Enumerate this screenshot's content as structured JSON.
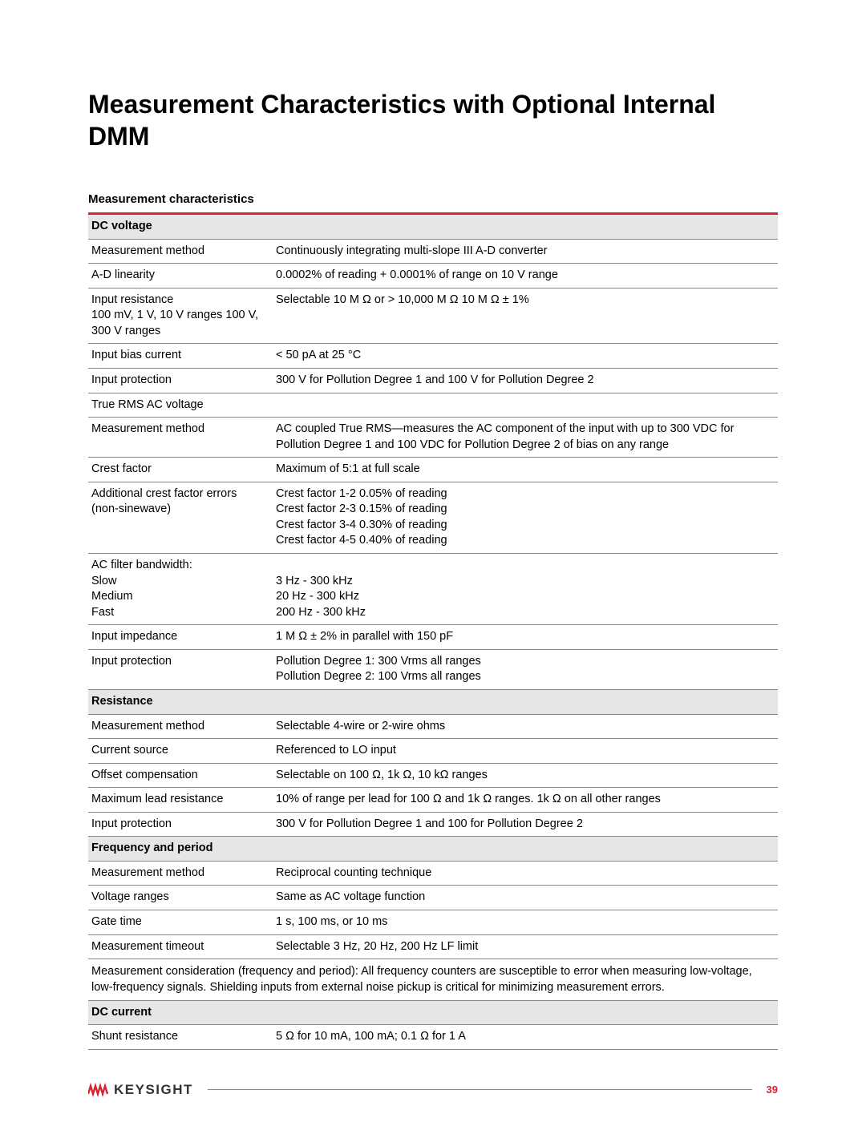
{
  "colors": {
    "accent": "#d22630",
    "header_bg": "#e6e6e6",
    "rule": "#888888",
    "text": "#000000",
    "logo_text": "#333333"
  },
  "page": {
    "title": "Measurement Characteristics with Optional Internal DMM",
    "table_title": "Measurement characteristics",
    "footnote": "",
    "page_number": "39",
    "logo_text": "KEYSIGHT"
  },
  "rows": [
    {
      "type": "header",
      "c0": "DC voltage",
      "c1": ""
    },
    {
      "type": "data",
      "c0": "Measurement method",
      "c1": "Continuously integrating multi-slope III A-D converter"
    },
    {
      "type": "data",
      "c0": "A-D linearity",
      "c1": "0.0002% of reading + 0.0001% of range on 10 V range"
    },
    {
      "type": "data",
      "c0": "Input resistance\n100 mV, 1 V, 10 V ranges 100 V, 300 V ranges",
      "c1": "Selectable 10 M Ω or > 10,000 M Ω 10 M Ω ± 1%"
    },
    {
      "type": "data",
      "c0": "Input bias current",
      "c1": "< 50 pA at 25 °C"
    },
    {
      "type": "data",
      "c0": "Input protection",
      "c1": "300 V for Pollution Degree 1 and 100 V for Pollution Degree 2"
    },
    {
      "type": "data",
      "c0": "True RMS AC voltage",
      "c1": ""
    },
    {
      "type": "data",
      "c0": "Measurement method",
      "c1": "AC coupled True RMS—measures the AC component of the input with up to 300 VDC for Pollution Degree 1 and 100 VDC for Pollution Degree 2 of bias on any range"
    },
    {
      "type": "data",
      "c0": "Crest factor",
      "c1": "Maximum of 5:1 at full scale"
    },
    {
      "type": "data",
      "c0": "Additional crest factor errors (non-sinewave)",
      "c1": "Crest factor 1-2 0.05% of reading\nCrest factor 2-3 0.15% of reading\nCrest factor 3-4 0.30% of reading\nCrest factor 4-5 0.40% of reading"
    },
    {
      "type": "data",
      "c0": "AC filter bandwidth:\nSlow\nMedium\nFast",
      "c1": "\n3 Hz - 300 kHz\n20 Hz - 300 kHz\n200 Hz - 300 kHz"
    },
    {
      "type": "data",
      "c0": "Input impedance",
      "c1": "1 M Ω ± 2% in parallel with 150 pF"
    },
    {
      "type": "data",
      "c0": "Input protection",
      "c1": "Pollution Degree 1: 300 Vrms all ranges\nPollution Degree 2: 100 Vrms all ranges"
    },
    {
      "type": "header",
      "c0": "Resistance",
      "c1": ""
    },
    {
      "type": "data",
      "c0": "Measurement method",
      "c1": "Selectable 4-wire or 2-wire ohms"
    },
    {
      "type": "data",
      "c0": "Current source",
      "c1": "Referenced to LO input"
    },
    {
      "type": "data",
      "c0": "Offset compensation",
      "c1": "Selectable on 100 Ω, 1k Ω, 10 kΩ ranges"
    },
    {
      "type": "data",
      "c0": "Maximum lead resistance",
      "c1": "10% of range per lead for 100 Ω and 1k Ω ranges. 1k Ω on all other ranges"
    },
    {
      "type": "data",
      "c0": "Input protection",
      "c1": "300 V for Pollution Degree 1 and 100 for Pollution Degree 2"
    },
    {
      "type": "header",
      "c0": "Frequency and period",
      "c1": ""
    },
    {
      "type": "data",
      "c0": "Measurement method",
      "c1": "Reciprocal counting technique"
    },
    {
      "type": "data",
      "c0": "Voltage ranges",
      "c1": "Same as AC voltage function"
    },
    {
      "type": "data",
      "c0": "Gate time",
      "c1": "1 s, 100 ms, or 10 ms"
    },
    {
      "type": "data",
      "c0": "Measurement timeout",
      "c1": "Selectable 3 Hz, 20 Hz, 200 Hz LF limit"
    },
    {
      "type": "note",
      "c0": "Measurement consideration (frequency and period): All frequency counters are susceptible to error when measuring low-voltage, low-frequency signals. Shielding inputs from external noise pickup is critical for minimizing measurement errors.",
      "c1": ""
    },
    {
      "type": "header",
      "c0": "DC current",
      "c1": ""
    },
    {
      "type": "data",
      "c0": "Shunt resistance",
      "c1": "5 Ω for 10 mA, 100 mA; 0.1 Ω for 1 A"
    }
  ]
}
